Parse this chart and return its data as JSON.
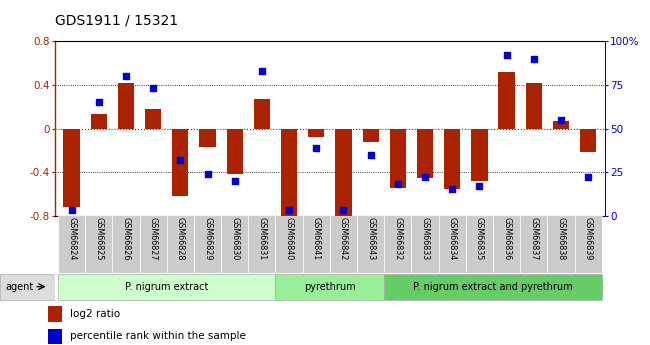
{
  "title": "GDS1911 / 15321",
  "samples": [
    "GSM66824",
    "GSM66825",
    "GSM66826",
    "GSM66827",
    "GSM66828",
    "GSM66829",
    "GSM66830",
    "GSM66831",
    "GSM66840",
    "GSM66841",
    "GSM66842",
    "GSM66843",
    "GSM66832",
    "GSM66833",
    "GSM66834",
    "GSM66835",
    "GSM66836",
    "GSM66837",
    "GSM66838",
    "GSM66839"
  ],
  "log2_ratio": [
    -0.72,
    0.13,
    0.42,
    0.18,
    -0.62,
    -0.17,
    -0.42,
    0.27,
    -0.8,
    -0.08,
    -0.8,
    -0.12,
    -0.55,
    -0.45,
    -0.56,
    -0.48,
    0.52,
    0.42,
    0.07,
    -0.22
  ],
  "pct_rank": [
    3,
    65,
    80,
    73,
    32,
    24,
    20,
    83,
    3,
    39,
    3,
    35,
    18,
    22,
    15,
    17,
    92,
    90,
    55,
    22
  ],
  "groups": [
    {
      "label": "P. nigrum extract",
      "start": 0,
      "end": 8,
      "color": "#ccffcc"
    },
    {
      "label": "pyrethrum",
      "start": 8,
      "end": 12,
      "color": "#99ee99"
    },
    {
      "label": "P. nigrum extract and pyrethrum",
      "start": 12,
      "end": 20,
      "color": "#66cc66"
    }
  ],
  "bar_color": "#aa2200",
  "dot_color": "#0000cc",
  "zero_line_color": "#cc0000",
  "ylim_left": [
    -0.8,
    0.8
  ],
  "ylim_right": [
    0,
    100
  ],
  "yticks_left": [
    -0.8,
    -0.4,
    0.0,
    0.4,
    0.8
  ],
  "yticks_right": [
    0,
    25,
    50,
    75,
    100
  ],
  "hline_positions": [
    -0.4,
    0.4
  ],
  "legend_items": [
    {
      "color": "#aa2200",
      "label": "log2 ratio"
    },
    {
      "color": "#0000cc",
      "label": "percentile rank within the sample"
    }
  ]
}
